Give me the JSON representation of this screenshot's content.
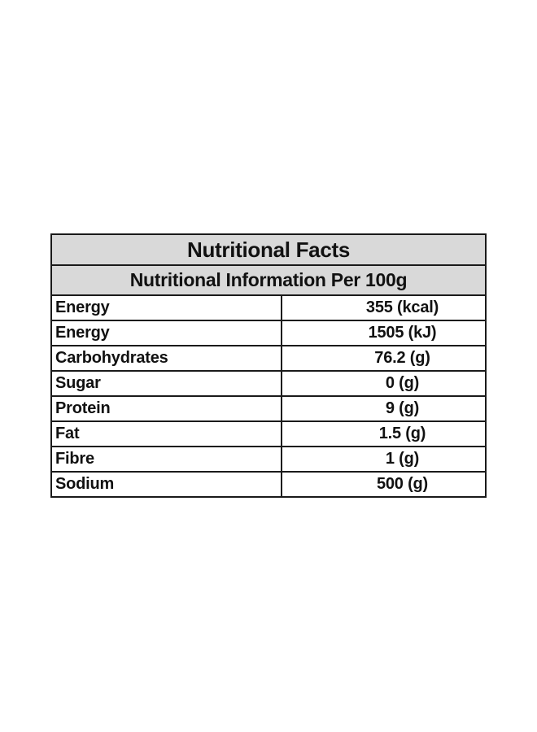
{
  "table": {
    "title": "Nutritional Facts",
    "subtitle": "Nutritional Information Per 100g",
    "header_bg": "#d9d9d9",
    "rows": [
      {
        "name": "Energy",
        "value": "355 (kcal)"
      },
      {
        "name": "Energy",
        "value": "1505 (kJ)"
      },
      {
        "name": "Carbohydrates",
        "value": "76.2 (g)"
      },
      {
        "name": "Sugar",
        "value": "0 (g)"
      },
      {
        "name": "Protein",
        "value": "9 (g)"
      },
      {
        "name": "Fat",
        "value": "1.5 (g)"
      },
      {
        "name": "Fibre",
        "value": "1 (g)"
      },
      {
        "name": "Sodium",
        "value": "500 (g)"
      }
    ]
  }
}
